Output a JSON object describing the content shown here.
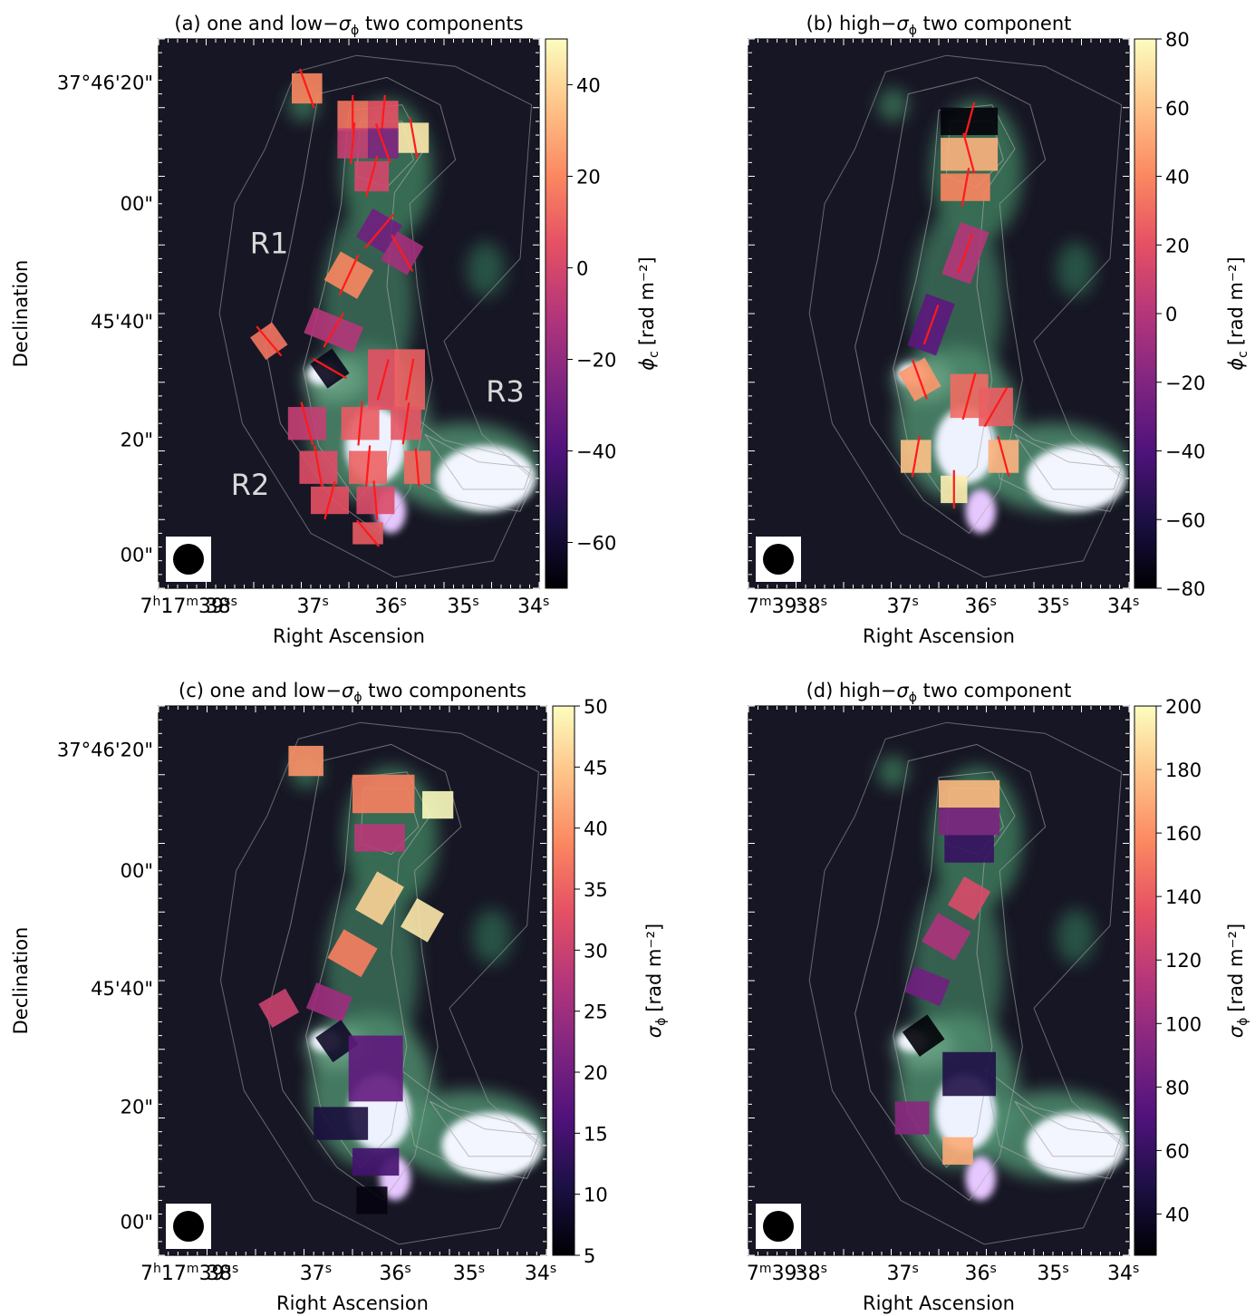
{
  "figure": {
    "panels": [
      {
        "id": "a",
        "title_main": "(a) one and low−",
        "title_sym": "σ",
        "title_sub": "ϕ",
        "title_rest": " two components",
        "ylabel": "Declination",
        "xlabel": "Right Ascension",
        "cbar_sym": "ϕ",
        "cbar_sub": "c",
        "cbar_unit": "[rad m⁻²]",
        "cbar_ticks": [
          "40",
          "20",
          "0",
          "−20",
          "−40",
          "−60"
        ],
        "cbar_range": [
          -70,
          50
        ],
        "region_labels": [
          "R1",
          "R2",
          "R3"
        ]
      },
      {
        "id": "b",
        "title_main": "(b) high−",
        "title_sym": "σ",
        "title_sub": "ϕ",
        "title_rest": " two component",
        "ylabel": "",
        "xlabel": "Right Ascension",
        "cbar_sym": "ϕ",
        "cbar_sub": "c",
        "cbar_unit": "[rad m⁻²]",
        "cbar_ticks": [
          "80",
          "60",
          "40",
          "20",
          "0",
          "−20",
          "−40",
          "−60",
          "−80"
        ],
        "cbar_range": [
          -80,
          80
        ],
        "region_labels": []
      },
      {
        "id": "c",
        "title_main": "(c) one and low−",
        "title_sym": "σ",
        "title_sub": "ϕ",
        "title_rest": " two components",
        "ylabel": "Declination",
        "xlabel": "Right Ascension",
        "cbar_sym": "σ",
        "cbar_sub": "ϕ",
        "cbar_unit": "[rad m⁻²]",
        "cbar_ticks": [
          "50",
          "45",
          "40",
          "35",
          "30",
          "25",
          "20",
          "15",
          "10",
          "5"
        ],
        "cbar_range": [
          5,
          50
        ],
        "region_labels": []
      },
      {
        "id": "d",
        "title_main": "(d) high−",
        "title_sym": "σ",
        "title_sub": "ϕ",
        "title_rest": " two component",
        "ylabel": "",
        "xlabel": "Right Ascension",
        "cbar_sym": "σ",
        "cbar_sub": "ϕ",
        "cbar_unit": "[rad m⁻²]",
        "cbar_ticks": [
          "200",
          "180",
          "160",
          "140",
          "120",
          "100",
          "80",
          "60",
          "40"
        ],
        "cbar_range": [
          27,
          200
        ],
        "region_labels": []
      }
    ],
    "dec_ticks": [
      "37°46'20\"",
      "00\"",
      "45'40\"",
      "20\"",
      "00\""
    ],
    "ra_ticks_a": {
      "first_h": "7",
      "first_hs": "h",
      "first_m": "17",
      "first_ms": "m",
      "first_s": "39",
      "rest": [
        "38",
        "37",
        "36",
        "35",
        "34"
      ],
      "sec": "s"
    },
    "ra_ticks_b": {
      "first_m": "7",
      "first_ms": "m",
      "first_s": "39",
      "rest": [
        "38",
        "37",
        "36",
        "35",
        "34"
      ],
      "sec": "s"
    }
  },
  "chart_data": [
    {
      "type": "heatmap",
      "panel": "a",
      "title": "(a) one and low−σϕ two components",
      "xlabel": "Right Ascension",
      "ylabel": "Declination",
      "colorbar_label": "ϕc [rad m⁻²]",
      "colorbar_range": [
        -70,
        50
      ],
      "colormap": "magma",
      "annotations": [
        "R1",
        "R2",
        "R3"
      ],
      "cells": [
        {
          "ra": "37.2",
          "dec": "20.5",
          "value": 20
        },
        {
          "ra": "36.2",
          "dec": "14",
          "value": 15
        },
        {
          "ra": "35.9",
          "dec": "14",
          "value": 5
        },
        {
          "ra": "35.5",
          "dec": "12",
          "value": 45
        },
        {
          "ra": "36.2",
          "dec": "11",
          "value": -5
        },
        {
          "ra": "35.9",
          "dec": "11",
          "value": -25
        },
        {
          "ra": "36.0",
          "dec": "5",
          "value": 0
        },
        {
          "ra": "36.1",
          "dec": "-4",
          "value": -30
        },
        {
          "ra": "35.7",
          "dec": "-7",
          "value": -15
        },
        {
          "ra": "36.5",
          "dec": "-10",
          "value": 20
        },
        {
          "ra": "36.6",
          "dec": "-19",
          "value": -10
        },
        {
          "ra": "37.5",
          "dec": "-25",
          "value": 15
        },
        {
          "ra": "37.0",
          "dec": "-28",
          "value": -65
        },
        {
          "ra": "36.3",
          "dec": "-28",
          "value": 5
        },
        {
          "ra": "35.9",
          "dec": "-28",
          "value": 10
        },
        {
          "ra": "36.9",
          "dec": "-37",
          "value": -5
        },
        {
          "ra": "36.2",
          "dec": "-37",
          "value": 8
        },
        {
          "ra": "35.8",
          "dec": "-37",
          "value": 6
        },
        {
          "ra": "36.5",
          "dec": "-45",
          "value": 3
        },
        {
          "ra": "36.0",
          "dec": "-45",
          "value": 10
        },
        {
          "ra": "35.6",
          "dec": "-45",
          "value": 12
        },
        {
          "ra": "36.5",
          "dec": "-51",
          "value": 5
        },
        {
          "ra": "36.0",
          "dec": "-51",
          "value": 2
        },
        {
          "ra": "36.2",
          "dec": "-57",
          "value": 8
        }
      ]
    },
    {
      "type": "heatmap",
      "panel": "b",
      "title": "(b) high−σϕ two component",
      "xlabel": "Right Ascension",
      "colorbar_label": "ϕc [rad m⁻²]",
      "colorbar_range": [
        -80,
        80
      ],
      "colormap": "magma",
      "cells": [
        {
          "ra": "36.0",
          "dec": "14",
          "value": -78
        },
        {
          "ra": "36.0",
          "dec": "10",
          "value": 55
        },
        {
          "ra": "36.0",
          "dec": "5",
          "value": 40
        },
        {
          "ra": "36.0",
          "dec": "-5",
          "value": 0
        },
        {
          "ra": "36.3",
          "dec": "-15",
          "value": -35
        },
        {
          "ra": "36.6",
          "dec": "-25",
          "value": 45
        },
        {
          "ra": "36.0",
          "dec": "-30",
          "value": 30
        },
        {
          "ra": "35.7",
          "dec": "-35",
          "value": 25
        },
        {
          "ra": "36.8",
          "dec": "-48",
          "value": 60
        },
        {
          "ra": "35.5",
          "dec": "-48",
          "value": 55
        },
        {
          "ra": "36.2",
          "dec": "-55",
          "value": 75
        }
      ]
    },
    {
      "type": "heatmap",
      "panel": "c",
      "title": "(c) one and low−σϕ two components",
      "xlabel": "Right Ascension",
      "ylabel": "Declination",
      "colorbar_label": "σϕ [rad m⁻²]",
      "colorbar_range": [
        5,
        50
      ],
      "colormap": "magma",
      "cells": [
        {
          "ra": "37.0",
          "dec": "20",
          "value": 40
        },
        {
          "ra": "36.0",
          "dec": "12",
          "value": 38
        },
        {
          "ra": "35.5",
          "dec": "11",
          "value": 50
        },
        {
          "ra": "36.0",
          "dec": "8",
          "value": 28
        },
        {
          "ra": "36.0",
          "dec": "-4",
          "value": 46
        },
        {
          "ra": "35.7",
          "dec": "-8",
          "value": 48
        },
        {
          "ra": "36.4",
          "dec": "-12",
          "value": 38
        },
        {
          "ra": "36.6",
          "dec": "-20",
          "value": 25
        },
        {
          "ra": "37.5",
          "dec": "-26",
          "value": 30
        },
        {
          "ra": "36.9",
          "dec": "-31",
          "value": 8
        },
        {
          "ra": "36.2",
          "dec": "-36",
          "value": 18
        },
        {
          "ra": "36.5",
          "dec": "-47",
          "value": 10
        },
        {
          "ra": "36.0",
          "dec": "-53",
          "value": 15
        },
        {
          "ra": "36.2",
          "dec": "-60",
          "value": 6
        }
      ]
    },
    {
      "type": "heatmap",
      "panel": "d",
      "title": "(d) high−σϕ two component",
      "xlabel": "Right Ascension",
      "colorbar_label": "σϕ [rad m⁻²]",
      "colorbar_range": [
        27,
        200
      ],
      "colormap": "magma",
      "cells": [
        {
          "ra": "36.0",
          "dec": "12",
          "value": 175
        },
        {
          "ra": "36.0",
          "dec": "7",
          "value": 90
        },
        {
          "ra": "36.0",
          "dec": "2",
          "value": 60
        },
        {
          "ra": "36.0",
          "dec": "-5",
          "value": 130
        },
        {
          "ra": "36.3",
          "dec": "-12",
          "value": 110
        },
        {
          "ra": "36.6",
          "dec": "-20",
          "value": 85
        },
        {
          "ra": "36.8",
          "dec": "-30",
          "value": 28
        },
        {
          "ra": "36.2",
          "dec": "-35",
          "value": 50
        },
        {
          "ra": "36.8",
          "dec": "-47",
          "value": 95
        },
        {
          "ra": "36.0",
          "dec": "-53",
          "value": 170
        }
      ]
    }
  ]
}
